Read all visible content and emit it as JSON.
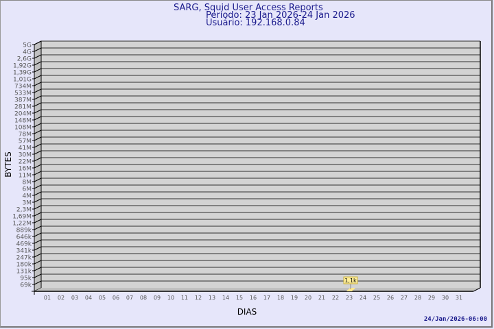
{
  "header": {
    "title": "SARG, Squid User Access Reports",
    "period": "Período: 23 Jan 2026-24 Jan 2026",
    "user": "Usuário: 192.168.0.84"
  },
  "footer": {
    "timestamp": "24/Jan/2026-06:00"
  },
  "chart_data": {
    "type": "bar",
    "xlabel": "DIAS",
    "ylabel": "BYTES",
    "y_scale": "log",
    "y_tick_labels": [
      "5G",
      "4G",
      "2,6G",
      "1,92G",
      "1,39G",
      "1,01G",
      "734M",
      "533M",
      "387M",
      "281M",
      "204M",
      "148M",
      "108M",
      "78M",
      "57M",
      "41M",
      "30M",
      "22M",
      "16M",
      "11M",
      "8M",
      "6M",
      "4M",
      "3M",
      "2,3M",
      "1,69M",
      "1,22M",
      "889k",
      "646k",
      "469k",
      "341k",
      "247k",
      "180k",
      "131k",
      "95k",
      "69k"
    ],
    "categories": [
      "01",
      "02",
      "03",
      "04",
      "05",
      "06",
      "07",
      "08",
      "09",
      "10",
      "11",
      "12",
      "13",
      "14",
      "15",
      "16",
      "17",
      "18",
      "19",
      "20",
      "21",
      "22",
      "23",
      "24",
      "25",
      "26",
      "27",
      "28",
      "29",
      "30",
      "31"
    ],
    "values": [
      null,
      null,
      null,
      null,
      null,
      null,
      null,
      null,
      null,
      null,
      null,
      null,
      null,
      null,
      null,
      null,
      null,
      null,
      null,
      null,
      null,
      null,
      1100,
      null,
      null,
      null,
      null,
      null,
      null,
      null,
      null
    ],
    "data_labels": {
      "23": "1,1k"
    },
    "grid": true,
    "colors": {
      "bar": "#ffe88c",
      "wall": "#d3d3d3",
      "side": "#c0c0c0",
      "text": "#1a1a8c"
    }
  }
}
